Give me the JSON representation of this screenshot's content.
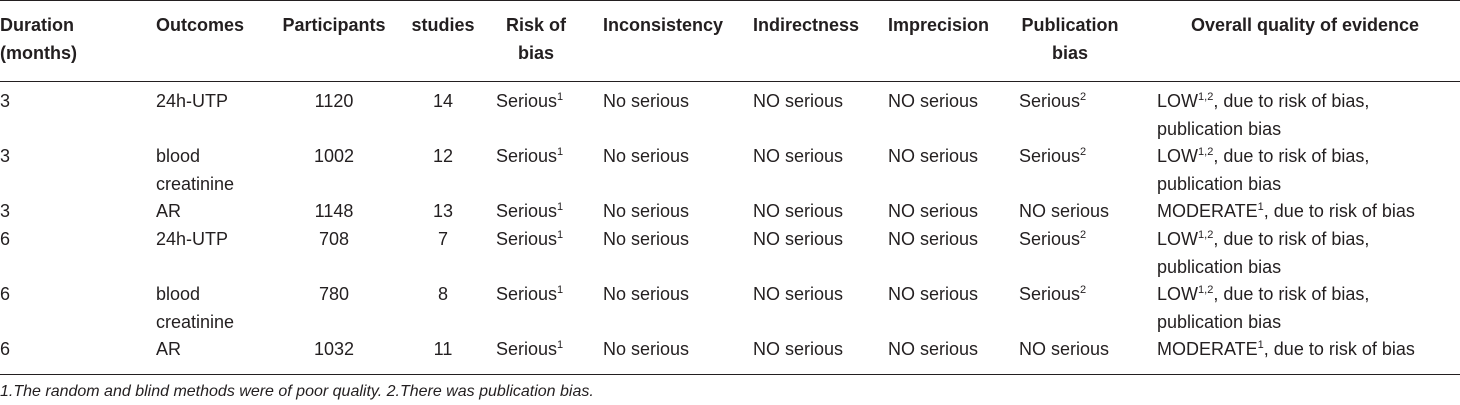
{
  "headers": {
    "duration": [
      "Duration",
      "(months)"
    ],
    "outcomes": "Outcomes",
    "participants": "Participants",
    "studies": "studies",
    "risk_of_bias": [
      "Risk of",
      "bias"
    ],
    "inconsistency": "Inconsistency",
    "indirectness": "Indirectness",
    "imprecision": "Imprecision",
    "publication_bias": [
      "Publication",
      "bias"
    ],
    "overall_quality": "Overall quality of evidence"
  },
  "rows": [
    {
      "duration": "3",
      "outcome": [
        "24h-UTP"
      ],
      "participants": "1120",
      "studies": "14",
      "risk_of_bias": "Serious",
      "risk_sup": "1",
      "inconsistency": "No serious",
      "indirectness": "NO serious",
      "imprecision": "NO serious",
      "publication_bias": "Serious",
      "pub_sup": "2",
      "quality_grade": "LOW",
      "quality_sup": "1,2",
      "quality_rest": ", due to risk of bias,",
      "quality_line2": "publication bias"
    },
    {
      "duration": "3",
      "outcome": [
        "blood",
        "creatinine"
      ],
      "participants": "1002",
      "studies": "12",
      "risk_of_bias": "Serious",
      "risk_sup": "1",
      "inconsistency": "No serious",
      "indirectness": "NO serious",
      "imprecision": "NO serious",
      "publication_bias": "Serious",
      "pub_sup": "2",
      "quality_grade": "LOW",
      "quality_sup": "1,2",
      "quality_rest": ", due to risk of bias,",
      "quality_line2": "publication bias"
    },
    {
      "duration": "3",
      "outcome": [
        "AR"
      ],
      "participants": "1148",
      "studies": "13",
      "risk_of_bias": "Serious",
      "risk_sup": "1",
      "inconsistency": "No serious",
      "indirectness": "NO serious",
      "imprecision": "NO serious",
      "publication_bias": "NO serious",
      "pub_sup": "",
      "quality_grade": "MODERATE",
      "quality_sup": "1",
      "quality_rest": ", due to risk of bias",
      "quality_line2": ""
    },
    {
      "duration": "6",
      "outcome": [
        "24h-UTP"
      ],
      "participants": "708",
      "studies": "7",
      "risk_of_bias": "Serious",
      "risk_sup": "1",
      "inconsistency": "No serious",
      "indirectness": "NO serious",
      "imprecision": "NO serious",
      "publication_bias": "Serious",
      "pub_sup": "2",
      "quality_grade": "LOW",
      "quality_sup": "1,2",
      "quality_rest": ", due to risk of bias,",
      "quality_line2": "publication bias"
    },
    {
      "duration": "6",
      "outcome": [
        "blood",
        "creatinine"
      ],
      "participants": "780",
      "studies": "8",
      "risk_of_bias": "Serious",
      "risk_sup": "1",
      "inconsistency": "No serious",
      "indirectness": "NO serious",
      "imprecision": "NO serious",
      "publication_bias": "Serious",
      "pub_sup": "2",
      "quality_grade": "LOW",
      "quality_sup": "1,2",
      "quality_rest": ", due to risk of bias,",
      "quality_line2": "publication bias"
    },
    {
      "duration": "6",
      "outcome": [
        "AR"
      ],
      "participants": "1032",
      "studies": "11",
      "risk_of_bias": "Serious",
      "risk_sup": "1",
      "inconsistency": "No serious",
      "indirectness": "NO serious",
      "imprecision": "NO serious",
      "publication_bias": "NO serious",
      "pub_sup": "",
      "quality_grade": "MODERATE",
      "quality_sup": "1",
      "quality_rest": ", due to risk of bias",
      "quality_line2": ""
    }
  ],
  "footnote": "1.The random and blind methods were of poor quality. 2.There was publication bias."
}
